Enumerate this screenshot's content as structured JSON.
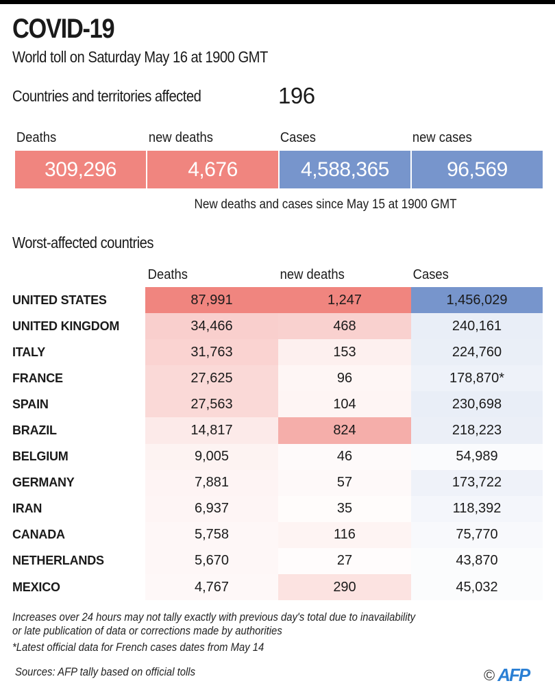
{
  "header": {
    "title": "COVID-19",
    "subtitle": "World toll on Saturday May 16 at 1900 GMT"
  },
  "affected": {
    "label": "Countries and territories affected",
    "value": "196"
  },
  "totals": {
    "items": [
      {
        "label": "Deaths",
        "value": "309,296",
        "kind": "deaths"
      },
      {
        "label": "new deaths",
        "value": "4,676",
        "kind": "deaths"
      },
      {
        "label": "Cases",
        "value": "4,588,365",
        "kind": "cases"
      },
      {
        "label": "new cases",
        "value": "96,569",
        "kind": "cases"
      }
    ],
    "note": "New deaths and cases since May 15 at 1900 GMT"
  },
  "colors": {
    "deaths": "#f0857f",
    "cases": "#7795cc",
    "text_on_color": "#ffffff"
  },
  "worst": {
    "title": "Worst-affected countries"
  },
  "chart_data": {
    "type": "heatmap",
    "title": "Worst-affected countries",
    "columns": [
      "Deaths",
      "new deaths",
      "Cases"
    ],
    "column_kinds": [
      "deaths",
      "deaths",
      "cases"
    ],
    "rows": [
      {
        "country": "UNITED STATES",
        "values": [
          87991,
          1247,
          1456029
        ],
        "labels": [
          "87,991",
          "1,247",
          "1,456,029"
        ]
      },
      {
        "country": "UNITED KINGDOM",
        "values": [
          34466,
          468,
          240161
        ],
        "labels": [
          "34,466",
          "468",
          "240,161"
        ]
      },
      {
        "country": "ITALY",
        "values": [
          31763,
          153,
          224760
        ],
        "labels": [
          "31,763",
          "153",
          "224,760"
        ]
      },
      {
        "country": "FRANCE",
        "values": [
          27625,
          96,
          178870
        ],
        "labels": [
          "27,625",
          "96",
          "178,870*"
        ]
      },
      {
        "country": "SPAIN",
        "values": [
          27563,
          104,
          230698
        ],
        "labels": [
          "27,563",
          "104",
          "230,698"
        ]
      },
      {
        "country": "BRAZIL",
        "values": [
          14817,
          824,
          218223
        ],
        "labels": [
          "14,817",
          "824",
          "218,223"
        ]
      },
      {
        "country": "BELGIUM",
        "values": [
          9005,
          46,
          54989
        ],
        "labels": [
          "9,005",
          "46",
          "54,989"
        ]
      },
      {
        "country": "GERMANY",
        "values": [
          7881,
          57,
          173722
        ],
        "labels": [
          "7,881",
          "57",
          "173,722"
        ]
      },
      {
        "country": "IRAN",
        "values": [
          6937,
          35,
          118392
        ],
        "labels": [
          "6,937",
          "35",
          "118,392"
        ]
      },
      {
        "country": "CANADA",
        "values": [
          5758,
          116,
          75770
        ],
        "labels": [
          "5,758",
          "116",
          "75,770"
        ]
      },
      {
        "country": "NETHERLANDS",
        "values": [
          5670,
          27,
          43870
        ],
        "labels": [
          "5,670",
          "27",
          "43,870"
        ]
      },
      {
        "country": "MEXICO",
        "values": [
          4767,
          290,
          45032
        ],
        "labels": [
          "4,767",
          "290",
          "45,032"
        ]
      }
    ]
  },
  "footnotes": {
    "line1": "Increases over 24 hours may not tally exactly with previous day's total due to inavailability",
    "line2": "or late publication of data or corrections made by authorities",
    "line3": "*Latest official data for French cases dates from May 14",
    "sources": "Sources: AFP tally based on official tolls",
    "copyright_symbol": "©",
    "logo": "AFP"
  }
}
